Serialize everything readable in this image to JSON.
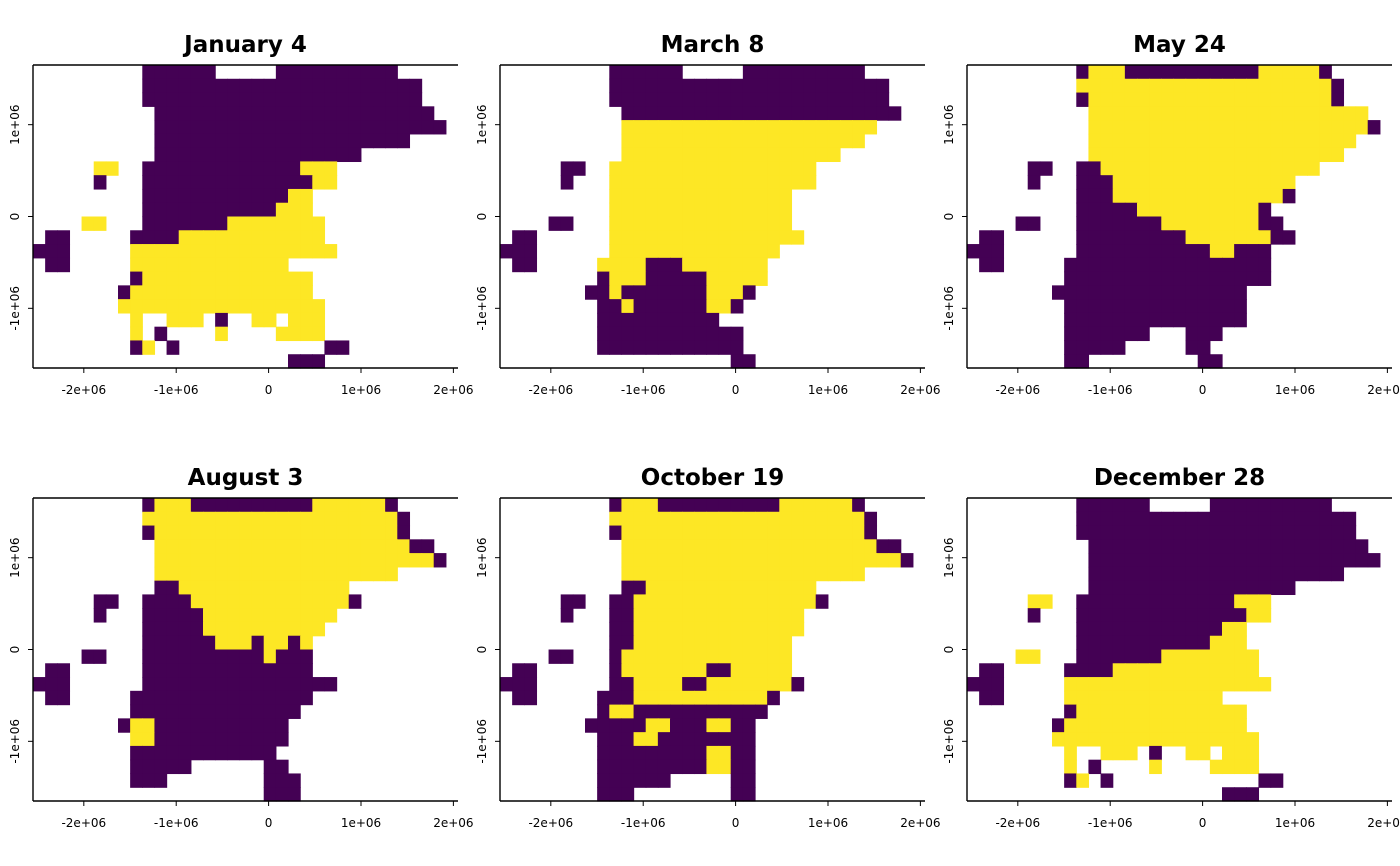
{
  "chart_data": {
    "type": "heatmap",
    "legend": "none",
    "grid": false,
    "colors": {
      "absent": "#440154",
      "present": "#FDE725",
      "na": "#FFFFFF"
    },
    "xlim": [
      -2550000,
      2050000
    ],
    "ylim": [
      -1650000,
      1650000
    ],
    "x_ticks": [
      {
        "value": -2000000,
        "label": "-2e+06"
      },
      {
        "value": -1000000,
        "label": "-1e+06"
      },
      {
        "value": 0,
        "label": "0"
      },
      {
        "value": 1000000,
        "label": "1e+06"
      },
      {
        "value": 2000000,
        "label": "2e+06"
      }
    ],
    "y_ticks": [
      {
        "value": -1000000,
        "label": "-1e+06"
      },
      {
        "value": 0,
        "label": "0"
      },
      {
        "value": 1000000,
        "label": "1e+06"
      }
    ],
    "cell_encoding": {
      ".": "no data (white)",
      "0": "value 0 (purple)",
      "1": "value 1 (yellow)"
    },
    "panels": [
      {
        "title": "January 4",
        "grid": [
          ".........000000.....0000000000.....",
          ".........00000000000000000000000...",
          ".........00000000000000000000000...",
          "..........00000000000000000000000..",
          "..........000000000000000000000000.",
          "..........000000000000000000000....",
          "..........00000000000000000........",
          ".....11..0000000000000111..........",
          ".....0...0000000000000011..........",
          ".........00000000000011............",
          ".........00000000000111............",
          "....11...000000011111111...........",
          ".00.....0000111111111111...........",
          "000.....11111111111111111..........",
          ".00.....1111111111111..............",
          "........011111111111111............",
          ".......0111111111111111............",
          ".......11111111111111111...........",
          "........1..111.0..11.111...........",
          "........1.0....1....1111...........",
          "........01.0............00.........",
          ".....................000..........."
        ]
      },
      {
        "title": "March 8",
        "grid": [
          ".........000000.....0000000000.....",
          ".........00000000000000000000000...",
          ".........00000000000000000000000...",
          "..........00000000000000000000000..",
          "..........111111111111111111111....",
          "..........11111111111111111111.....",
          "..........111111111111111111.......",
          ".....00..11111111111111111.........",
          ".....0...11111111111111111.........",
          ".........111111111111111...........",
          ".........111111111111111...........",
          "....00...111111111111111...........",
          ".00......1111111111111111..........",
          "000......11111111111111............",
          ".00.....11110001111111.............",
          "........01110000011111.............",
          ".......00100000001110..............",
          "........001000000110...............",
          "........0000000000.................",
          "........000000000000...............",
          "........000000000000...............",
          "...................00.............."
        ]
      },
      {
        "title": "May 24",
        "grid": [
          ".........011100000000000111110.....",
          ".........1111111111111111111110....",
          ".........0111111111111111111110....",
          "..........11111111111111111111111..",
          "..........111111111111111111111110.",
          "..........1111111111111111111111...",
          "..........111111111111111111111....",
          ".....00..00111111111111111111......",
          ".....0...000111111111111111........",
          ".........000111111111111110........",
          ".........0000011111111110..........",
          "....00...00000001111111100.........",
          ".00......000000000111111100........",
          "000......0000000000011000..........",
          ".00.....00000000000000000..........",
          "........00000000000000000..........",
          ".......0000000000000000............",
          "........000000000000000............",
          "........000000000000000............",
          "........0000000...000..............",
          "........00000.....00...............",
          "........00.........00.............."
        ]
      },
      {
        "title": "August 3",
        "grid": [
          ".........011100000000001111110.....",
          ".........1111111111111111111110....",
          ".........0111111111111111111110....",
          "..........11111111111111111111100..",
          "..........111111111111111111111110.",
          "..........11111111111111111111.....",
          "..........0011111111111111.........",
          ".....00..000011111111111110........",
          ".....0...0000011111111111..........",
          ".........000001111111111...........",
          ".........00000011101101............",
          "....00...00000000001000............",
          ".00......00000000000000............",
          "000......0000000000000000..........",
          ".00.....000000000000000............",
          "........00000000000000.............",
          ".......01100000000000..............",
          "........1100000000000..............",
          "........000000000000...............",
          "........00000......00..............",
          "........000........000.............",
          "...................000............."
        ]
      },
      {
        "title": "October 19",
        "grid": [
          ".........011100000000001111110.....",
          ".........1111111111111111111110....",
          ".........0111111111111111111110....",
          "..........11111111111111111111100..",
          "..........111111111111111111111110.",
          "..........11111111111111111111.....",
          "..........0011111111111111.........",
          ".....00..001111111111111110........",
          ".....0...0011111111111111..........",
          ".........0011111111111111..........",
          ".........001111111111111...........",
          "....00...011111111111111...........",
          ".00......011111110011111...........",
          "000......0011110011111110..........",
          ".00.....000111111111110............",
          "........01100000000000.............",
          ".......00000110001100..............",
          "........0001100000000..............",
          "........0000000001100..............",
          "........0000000001100..............",
          "........000000.....00..............",
          "........000........00.............."
        ]
      },
      {
        "title": "December 28",
        "grid": [
          ".........000000.....0000000000.....",
          ".........00000000000000000000000...",
          ".........00000000000000000000000...",
          "..........00000000000000000000000..",
          "..........000000000000000000000000.",
          "..........000000000000000000000....",
          "..........00000000000000000........",
          ".....11..0000000000000111..........",
          ".....0...0000000000000011..........",
          ".........00000000000011............",
          ".........00000000000111............",
          "....11...000000011111111...........",
          ".00.....0000111111111111...........",
          "000.....11111111111111111..........",
          ".00.....1111111111111..............",
          "........011111111111111............",
          ".......0111111111111111............",
          ".......11111111111111111...........",
          "........1..111.0..11.111...........",
          "........1.0....1....1111...........",
          "........01.0............00.........",
          ".....................000..........."
        ]
      }
    ]
  }
}
